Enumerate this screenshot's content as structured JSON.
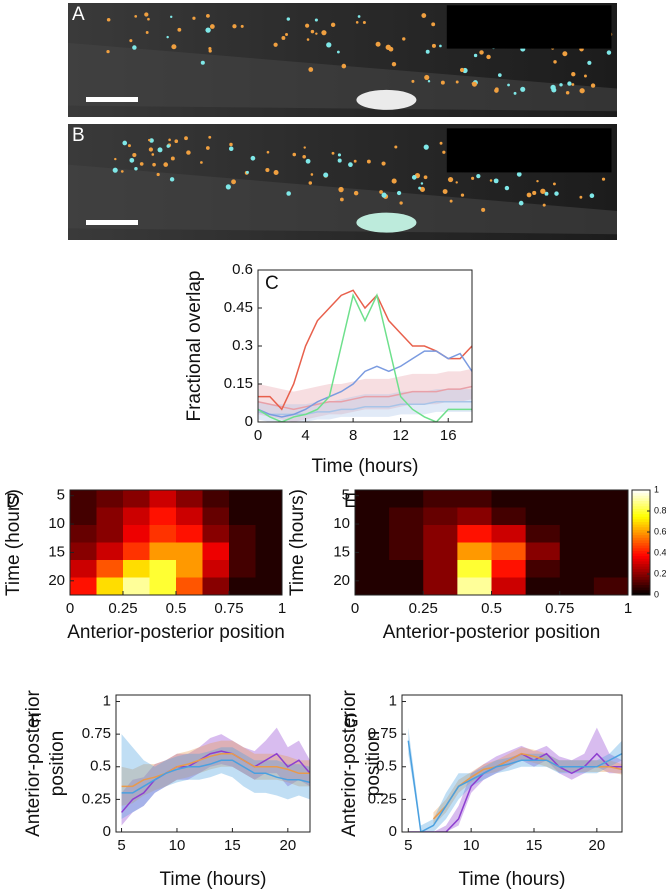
{
  "images": [
    {
      "label": "A"
    },
    {
      "label": "B"
    }
  ],
  "chart_data": [
    {
      "type": "line",
      "label": "C",
      "ylabel": [
        "Fractional overlap"
      ],
      "xlabel": "Time (hours)",
      "xlim": [
        0,
        18
      ],
      "xticks": [
        0,
        4,
        8,
        12,
        16
      ],
      "ylim": [
        0,
        0.6
      ],
      "yticks": [
        0,
        0.15,
        0.3,
        0.45,
        0.6
      ],
      "x": [
        0,
        1,
        2,
        3,
        4,
        5,
        6,
        7,
        8,
        9,
        10,
        11,
        12,
        13,
        14,
        15,
        16,
        17,
        18
      ],
      "series": [
        {
          "color": "#e8a0a8",
          "values": [
            0.08,
            0.07,
            0.06,
            0.05,
            0.06,
            0.07,
            0.08,
            0.08,
            0.09,
            0.1,
            0.1,
            0.1,
            0.11,
            0.12,
            0.12,
            0.12,
            0.13,
            0.13,
            0.14
          ],
          "lower": [
            0.03,
            0.02,
            0.01,
            0,
            0.01,
            0.02,
            0.03,
            0.03,
            0.04,
            0.05,
            0.05,
            0.05,
            0.06,
            0.07,
            0.07,
            0.07,
            0.08,
            0.08,
            0.09
          ],
          "upper": [
            0.15,
            0.14,
            0.13,
            0.12,
            0.13,
            0.14,
            0.15,
            0.15,
            0.16,
            0.17,
            0.17,
            0.17,
            0.18,
            0.19,
            0.19,
            0.19,
            0.2,
            0.2,
            0.21
          ]
        },
        {
          "color": "#a8c4e8",
          "values": [
            0.04,
            0.03,
            0.03,
            0.03,
            0.03,
            0.04,
            0.04,
            0.05,
            0.05,
            0.06,
            0.06,
            0.06,
            0.07,
            0.07,
            0.07,
            0.08,
            0.08,
            0.08,
            0.08
          ],
          "lower": [
            0.01,
            0,
            0,
            0,
            0,
            0.01,
            0.01,
            0.02,
            0.02,
            0.02,
            0.02,
            0.02,
            0.03,
            0.03,
            0.03,
            0.04,
            0.04,
            0.04,
            0.04
          ],
          "upper": [
            0.08,
            0.07,
            0.07,
            0.07,
            0.07,
            0.08,
            0.08,
            0.09,
            0.1,
            0.11,
            0.11,
            0.11,
            0.12,
            0.12,
            0.12,
            0.13,
            0.13,
            0.13,
            0.13
          ]
        },
        {
          "color": "#e8604c",
          "values": [
            0.1,
            0.1,
            0.05,
            0.15,
            0.3,
            0.4,
            0.45,
            0.5,
            0.52,
            0.45,
            0.5,
            0.4,
            0.35,
            0.3,
            0.3,
            0.28,
            0.25,
            0.25,
            0.3
          ]
        },
        {
          "color": "#7b9be0",
          "values": [
            0.05,
            0.03,
            0.02,
            0.03,
            0.05,
            0.08,
            0.1,
            0.12,
            0.15,
            0.2,
            0.22,
            0.2,
            0.22,
            0.25,
            0.28,
            0.28,
            0.25,
            0.27,
            0.2
          ]
        },
        {
          "color": "#6ee08c",
          "values": [
            0.05,
            0.02,
            0,
            0.02,
            0.03,
            0.05,
            0.1,
            0.3,
            0.5,
            0.4,
            0.5,
            0.3,
            0.1,
            0.05,
            0.02,
            0,
            0.05,
            0.05,
            0.05
          ]
        }
      ]
    },
    {
      "type": "heatmap",
      "label": "D",
      "ylabel": [
        "Time (hours)"
      ],
      "xlabel": "Anterior-posterior position",
      "xlim": [
        0,
        1
      ],
      "xticks": [
        0,
        0.25,
        0.5,
        0.75,
        1
      ],
      "ylim": [
        4,
        22.5
      ],
      "yticks": [
        5,
        10,
        15,
        20
      ],
      "z": [
        [
          0.1,
          0.15,
          0.2,
          0.3,
          0.2,
          0.1,
          0.05,
          0.05
        ],
        [
          0.1,
          0.2,
          0.3,
          0.4,
          0.3,
          0.15,
          0.05,
          0.05
        ],
        [
          0.15,
          0.2,
          0.35,
          0.45,
          0.4,
          0.2,
          0.1,
          0.05
        ],
        [
          0.2,
          0.3,
          0.45,
          0.6,
          0.6,
          0.35,
          0.1,
          0.05
        ],
        [
          0.3,
          0.5,
          0.7,
          0.8,
          0.6,
          0.3,
          0.1,
          0.05
        ],
        [
          0.4,
          0.7,
          0.9,
          0.8,
          0.5,
          0.2,
          0.05,
          0.05
        ]
      ]
    },
    {
      "type": "heatmap",
      "label": "E",
      "ylabel": [
        "Time (hours)"
      ],
      "xlabel": "Anterior-posterior position",
      "xlim": [
        0,
        1
      ],
      "xticks": [
        0,
        0.25,
        0.5,
        0.75,
        1
      ],
      "ylim": [
        4,
        22.5
      ],
      "yticks": [
        5,
        10,
        15,
        20
      ],
      "z": [
        [
          0.05,
          0.05,
          0.1,
          0.1,
          0.05,
          0.05,
          0.05,
          0.05
        ],
        [
          0.05,
          0.1,
          0.15,
          0.2,
          0.1,
          0.05,
          0.05,
          0.05
        ],
        [
          0.05,
          0.1,
          0.2,
          0.4,
          0.3,
          0.1,
          0.05,
          0.05
        ],
        [
          0.05,
          0.1,
          0.2,
          0.6,
          0.5,
          0.2,
          0.05,
          0.05
        ],
        [
          0.05,
          0.05,
          0.2,
          0.8,
          0.4,
          0.1,
          0.05,
          0.05
        ],
        [
          0.05,
          0.05,
          0.2,
          0.9,
          0.3,
          0.05,
          0.05,
          0.1
        ]
      ],
      "colorbar": {
        "lim": [
          0,
          1
        ],
        "ticks": [
          0,
          0.2,
          0.4,
          0.6,
          0.8,
          1
        ]
      }
    },
    {
      "type": "line",
      "label": "F",
      "ylabel": [
        "Anterior-posterior",
        "position"
      ],
      "xlabel": "Time (hours)",
      "xlim": [
        4.5,
        22
      ],
      "xticks": [
        5,
        10,
        15,
        20
      ],
      "ylim": [
        0,
        1.05
      ],
      "yticks": [
        0,
        0.25,
        0.5,
        0.75,
        1
      ],
      "x": [
        5,
        6,
        7,
        8,
        9,
        10,
        11,
        12,
        13,
        14,
        15,
        16,
        17,
        18,
        19,
        20,
        21,
        22
      ],
      "series": [
        {
          "color": "#8e3fd0",
          "values": [
            0.15,
            0.25,
            0.3,
            0.4,
            0.45,
            0.5,
            0.5,
            0.55,
            0.6,
            0.62,
            0.6,
            0.55,
            0.5,
            0.55,
            0.6,
            0.5,
            0.55,
            0.45
          ],
          "lower": [
            0.05,
            0.15,
            0.2,
            0.3,
            0.35,
            0.4,
            0.4,
            0.45,
            0.5,
            0.52,
            0.5,
            0.45,
            0.4,
            0.45,
            0.45,
            0.35,
            0.4,
            0.35
          ],
          "upper": [
            0.3,
            0.4,
            0.42,
            0.52,
            0.55,
            0.6,
            0.6,
            0.65,
            0.72,
            0.75,
            0.7,
            0.65,
            0.62,
            0.7,
            0.8,
            0.65,
            0.7,
            0.55
          ]
        },
        {
          "color": "#e89a4c",
          "values": [
            0.35,
            0.35,
            0.4,
            0.42,
            0.45,
            0.5,
            0.52,
            0.55,
            0.58,
            0.6,
            0.6,
            0.55,
            0.5,
            0.5,
            0.5,
            0.48,
            0.45,
            0.45
          ],
          "lower": [
            0.2,
            0.22,
            0.28,
            0.32,
            0.35,
            0.4,
            0.42,
            0.45,
            0.48,
            0.5,
            0.5,
            0.45,
            0.4,
            0.4,
            0.4,
            0.38,
            0.35,
            0.35
          ],
          "upper": [
            0.5,
            0.48,
            0.52,
            0.52,
            0.55,
            0.6,
            0.62,
            0.65,
            0.68,
            0.7,
            0.7,
            0.65,
            0.6,
            0.6,
            0.6,
            0.58,
            0.55,
            0.55
          ]
        },
        {
          "color": "#4aa0e0",
          "values": [
            0.3,
            0.3,
            0.35,
            0.4,
            0.45,
            0.48,
            0.5,
            0.5,
            0.52,
            0.55,
            0.55,
            0.5,
            0.45,
            0.45,
            0.42,
            0.4,
            0.4,
            0.38
          ],
          "lower": [
            0.1,
            0.15,
            0.2,
            0.3,
            0.35,
            0.38,
            0.4,
            0.4,
            0.42,
            0.45,
            0.42,
            0.35,
            0.3,
            0.3,
            0.28,
            0.25,
            0.28,
            0.25
          ],
          "upper": [
            0.75,
            0.65,
            0.55,
            0.5,
            0.55,
            0.58,
            0.6,
            0.6,
            0.62,
            0.65,
            0.65,
            0.6,
            0.55,
            0.55,
            0.55,
            0.52,
            0.52,
            0.5
          ]
        }
      ]
    },
    {
      "type": "line",
      "label": "G",
      "ylabel": [
        "Anterior-posterior",
        "position"
      ],
      "xlabel": "Time (hours)",
      "xlim": [
        4.5,
        22
      ],
      "xticks": [
        5,
        10,
        15,
        20
      ],
      "ylim": [
        0,
        1.05
      ],
      "yticks": [
        0,
        0.25,
        0.5,
        0.75,
        1
      ],
      "x": [
        5,
        6,
        7,
        8,
        9,
        10,
        11,
        12,
        13,
        14,
        15,
        16,
        17,
        18,
        19,
        20,
        21,
        22
      ],
      "series": [
        {
          "color": "#8e3fd0",
          "values": [
            0,
            0,
            0,
            0,
            0.1,
            0.35,
            0.45,
            0.5,
            0.55,
            0.6,
            0.55,
            0.6,
            0.5,
            0.45,
            0.5,
            0.6,
            0.5,
            0.5
          ],
          "lower": [
            0,
            0,
            0,
            0,
            0.05,
            0.3,
            0.4,
            0.45,
            0.5,
            0.55,
            0.5,
            0.55,
            0.45,
            0.4,
            0.45,
            0.5,
            0.45,
            0.45
          ],
          "upper": [
            0,
            0,
            0,
            0.05,
            0.2,
            0.45,
            0.52,
            0.58,
            0.62,
            0.66,
            0.62,
            0.66,
            0.58,
            0.55,
            0.6,
            0.8,
            0.6,
            0.55
          ]
        },
        {
          "color": "#e89a4c",
          "values": [
            null,
            null,
            0.1,
            0.2,
            0.35,
            0.42,
            0.48,
            0.5,
            0.55,
            0.6,
            0.58,
            0.55,
            0.5,
            0.5,
            0.5,
            0.5,
            0.5,
            0.48
          ],
          "lower": [
            null,
            null,
            0.05,
            0.15,
            0.3,
            0.38,
            0.44,
            0.46,
            0.5,
            0.55,
            0.53,
            0.5,
            0.46,
            0.46,
            0.46,
            0.46,
            0.46,
            0.44
          ],
          "upper": [
            null,
            null,
            0.15,
            0.25,
            0.4,
            0.46,
            0.52,
            0.55,
            0.6,
            0.65,
            0.63,
            0.6,
            0.55,
            0.55,
            0.55,
            0.55,
            0.55,
            0.52
          ]
        },
        {
          "color": "#4aa0e0",
          "values": [
            0.7,
            0,
            0.05,
            0.2,
            0.35,
            0.4,
            0.45,
            0.5,
            0.52,
            0.55,
            0.55,
            0.55,
            0.5,
            0.5,
            0.5,
            0.5,
            0.55,
            0.6
          ],
          "lower": [
            0.6,
            0,
            0,
            0.1,
            0.25,
            0.35,
            0.4,
            0.45,
            0.47,
            0.5,
            0.5,
            0.5,
            0.45,
            0.45,
            0.45,
            0.45,
            0.5,
            0.55
          ],
          "upper": [
            0.8,
            0.05,
            0.1,
            0.3,
            0.45,
            0.45,
            0.5,
            0.55,
            0.57,
            0.6,
            0.6,
            0.6,
            0.55,
            0.55,
            0.55,
            0.55,
            0.6,
            0.7
          ]
        }
      ]
    }
  ]
}
